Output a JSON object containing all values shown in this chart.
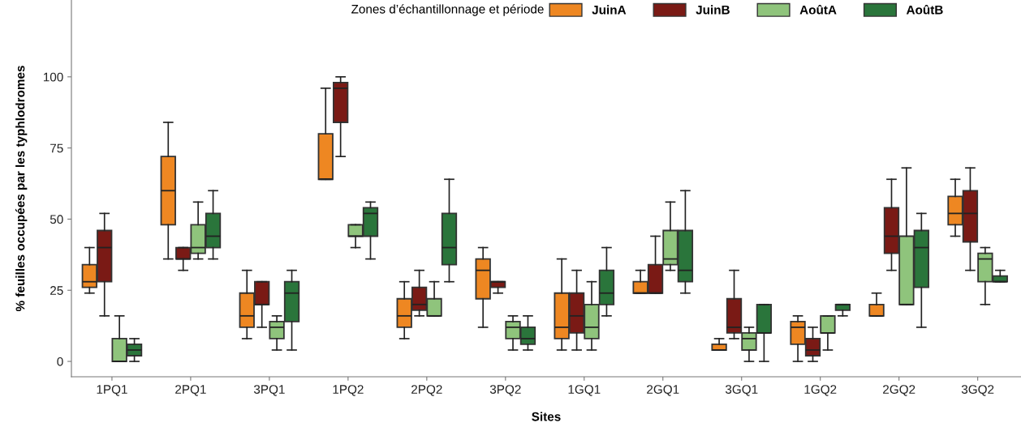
{
  "chart_data": {
    "type": "box",
    "xlabel": "Sites",
    "ylabel": "% feuilles occupées par les typhlodromes",
    "legend_title": "Zones d’échantillonnage et période",
    "categories": [
      "1PQ1",
      "2PQ1",
      "3PQ1",
      "1PQ2",
      "2PQ2",
      "3PQ2",
      "1GQ1",
      "2GQ1",
      "3GQ1",
      "1GQ2",
      "2GQ2",
      "3GQ2"
    ],
    "ylim": [
      -5.4,
      127
    ],
    "yticks": [
      0,
      25,
      50,
      75,
      100
    ],
    "grid": false,
    "legend": "top right",
    "series": [
      {
        "name": "JuinA",
        "color": "#ee8722",
        "boxes": [
          {
            "low": 24,
            "q1": 26,
            "median": 28,
            "q3": 34,
            "high": 40
          },
          {
            "low": 36,
            "q1": 48,
            "median": 60,
            "q3": 72,
            "high": 84
          },
          {
            "low": 8,
            "q1": 12,
            "median": 16,
            "q3": 24,
            "high": 32
          },
          {
            "low": 64,
            "q1": 64,
            "median": 64,
            "q3": 80,
            "high": 96
          },
          {
            "low": 8,
            "q1": 12,
            "median": 16,
            "q3": 22,
            "high": 28
          },
          {
            "low": 12,
            "q1": 22,
            "median": 32,
            "q3": 36,
            "high": 40
          },
          {
            "low": 4,
            "q1": 8,
            "median": 12,
            "q3": 24,
            "high": 36
          },
          {
            "low": 24,
            "q1": 24,
            "median": 24,
            "q3": 28,
            "high": 32
          },
          {
            "low": 4,
            "q1": 4,
            "median": 4,
            "q3": 6,
            "high": 8
          },
          {
            "low": 0,
            "q1": 6,
            "median": 12,
            "q3": 14,
            "high": 16
          },
          {
            "low": 16,
            "q1": 16,
            "median": 16,
            "q3": 20,
            "high": 24
          },
          {
            "low": 44,
            "q1": 48,
            "median": 52,
            "q3": 58,
            "high": 64
          }
        ]
      },
      {
        "name": "JuinB",
        "color": "#7a1a15",
        "boxes": [
          {
            "low": 16,
            "q1": 28,
            "median": 40,
            "q3": 46,
            "high": 52
          },
          {
            "low": 32,
            "q1": 36,
            "median": 36,
            "q3": 40,
            "high": 40
          },
          {
            "low": 12,
            "q1": 20,
            "median": 20,
            "q3": 28,
            "high": 28
          },
          {
            "low": 72,
            "q1": 84,
            "median": 96,
            "q3": 98,
            "high": 100
          },
          {
            "low": 16,
            "q1": 18,
            "median": 20,
            "q3": 26,
            "high": 32
          },
          {
            "low": 24,
            "q1": 26,
            "median": 28,
            "q3": 28,
            "high": 28
          },
          {
            "low": 4,
            "q1": 10,
            "median": 16,
            "q3": 24,
            "high": 32
          },
          {
            "low": 24,
            "q1": 24,
            "median": 24,
            "q3": 34,
            "high": 44
          },
          {
            "low": 8,
            "q1": 10,
            "median": 12,
            "q3": 22,
            "high": 32
          },
          {
            "low": 0,
            "q1": 2,
            "median": 4,
            "q3": 8,
            "high": 12
          },
          {
            "low": 32,
            "q1": 38,
            "median": 44,
            "q3": 54,
            "high": 64
          },
          {
            "low": 32,
            "q1": 42,
            "median": 52,
            "q3": 60,
            "high": 68
          }
        ]
      },
      {
        "name": "AoûtA",
        "color": "#8fc47c",
        "boxes": [
          {
            "low": 0,
            "q1": 0,
            "median": 0,
            "q3": 8,
            "high": 16
          },
          {
            "low": 36,
            "q1": 38,
            "median": 40,
            "q3": 48,
            "high": 56
          },
          {
            "low": 4,
            "q1": 8,
            "median": 12,
            "q3": 14,
            "high": 16
          },
          {
            "low": 40,
            "q1": 44,
            "median": 44,
            "q3": 48,
            "high": 48
          },
          {
            "low": 16,
            "q1": 16,
            "median": 16,
            "q3": 22,
            "high": 28
          },
          {
            "low": 4,
            "q1": 8,
            "median": 12,
            "q3": 14,
            "high": 16
          },
          {
            "low": 4,
            "q1": 8,
            "median": 12,
            "q3": 20,
            "high": 28
          },
          {
            "low": 32,
            "q1": 34,
            "median": 36,
            "q3": 46,
            "high": 56
          },
          {
            "low": 0,
            "q1": 4,
            "median": 8,
            "q3": 10,
            "high": 12
          },
          {
            "low": 4,
            "q1": 10,
            "median": 10,
            "q3": 16,
            "high": 16
          },
          {
            "low": 20,
            "q1": 20,
            "median": 20,
            "q3": 44,
            "high": 68
          },
          {
            "low": 20,
            "q1": 28,
            "median": 36,
            "q3": 38,
            "high": 40
          }
        ]
      },
      {
        "name": "AoûtB",
        "color": "#2a753b",
        "boxes": [
          {
            "low": 0,
            "q1": 2,
            "median": 4,
            "q3": 6,
            "high": 8
          },
          {
            "low": 36,
            "q1": 40,
            "median": 44,
            "q3": 52,
            "high": 60
          },
          {
            "low": 4,
            "q1": 14,
            "median": 24,
            "q3": 28,
            "high": 32
          },
          {
            "low": 36,
            "q1": 44,
            "median": 52,
            "q3": 54,
            "high": 56
          },
          {
            "low": 28,
            "q1": 34,
            "median": 40,
            "q3": 52,
            "high": 64
          },
          {
            "low": 4,
            "q1": 6,
            "median": 8,
            "q3": 12,
            "high": 16
          },
          {
            "low": 16,
            "q1": 20,
            "median": 24,
            "q3": 32,
            "high": 40
          },
          {
            "low": 24,
            "q1": 28,
            "median": 32,
            "q3": 46,
            "high": 60
          },
          {
            "low": 0,
            "q1": 10,
            "median": 10,
            "q3": 20,
            "high": 20
          },
          {
            "low": 16,
            "q1": 18,
            "median": 20,
            "q3": 20,
            "high": 20
          },
          {
            "low": 12,
            "q1": 26,
            "median": 40,
            "q3": 46,
            "high": 52
          },
          {
            "low": 28,
            "q1": 28,
            "median": 28,
            "q3": 30,
            "high": 32
          }
        ]
      }
    ]
  }
}
